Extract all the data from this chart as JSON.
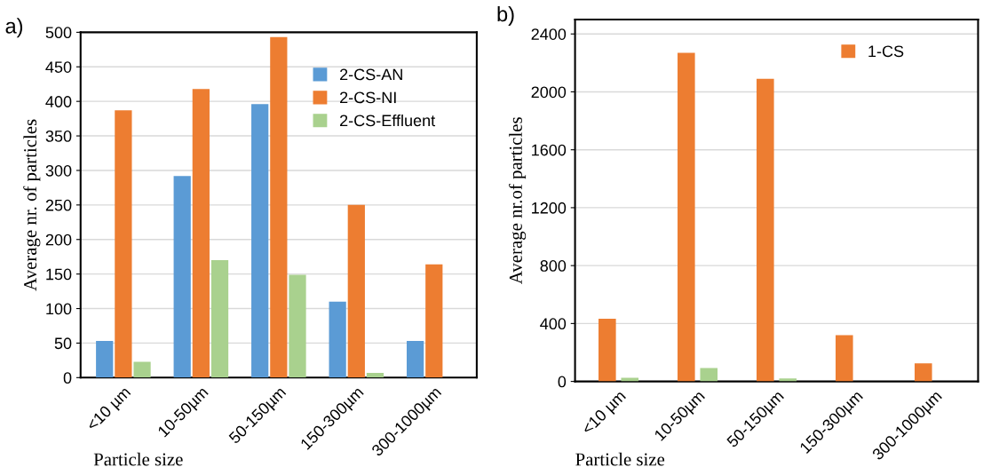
{
  "chart_data": [
    {
      "type": "bar",
      "annotations": [
        "a)"
      ],
      "xlabel": "Particle size",
      "ylabel": "Average nr. of particles",
      "categories": [
        "<10 µm",
        "10-50µm",
        "50-150µm",
        "150-300µm",
        "300-1000µm"
      ],
      "series": [
        {
          "name": "2-CS-AN",
          "color": "#5b9bd5",
          "values": [
            53,
            292,
            396,
            110,
            53
          ]
        },
        {
          "name": "2-CS-NI",
          "color": "#ed7d31",
          "values": [
            387,
            418,
            493,
            250,
            164
          ]
        },
        {
          "name": "2-CS-Effluent",
          "color": "#a9d18e",
          "values": [
            23,
            170,
            149,
            7,
            null
          ]
        }
      ],
      "ylim": [
        0,
        500
      ],
      "yticks": [
        0,
        50,
        100,
        150,
        200,
        250,
        300,
        350,
        400,
        450,
        500
      ],
      "grid": "y",
      "legend": "top right"
    },
    {
      "type": "bar",
      "annotations": [
        "b)"
      ],
      "xlabel": "Particle size",
      "ylabel": "Average nr.of particles",
      "categories": [
        "<10 µm",
        "10-50µm",
        "50-150µm",
        "150-300µm",
        "300-1000µm"
      ],
      "series": [
        {
          "name": "1-CS",
          "color": "#ed7d31",
          "values": [
            433,
            2270,
            2090,
            320,
            125
          ]
        },
        {
          "color": "#a9d18e",
          "values": [
            25,
            92,
            20,
            null,
            null
          ]
        }
      ],
      "ylim": [
        0,
        2500
      ],
      "yticks": [
        0,
        400,
        800,
        1200,
        1600,
        2000,
        2400
      ],
      "grid": "y",
      "legend": "top right"
    }
  ]
}
